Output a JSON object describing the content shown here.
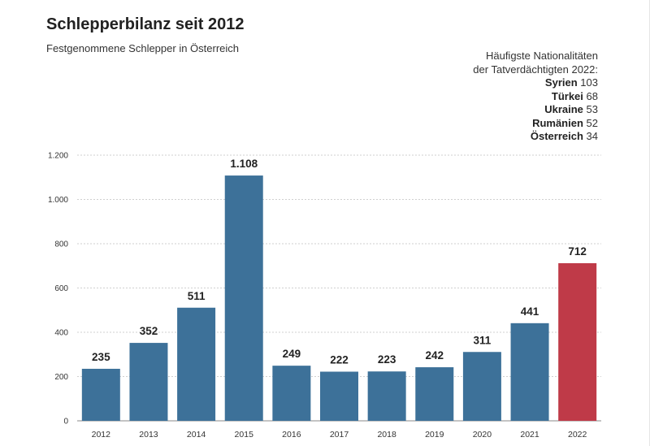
{
  "title": "Schlepperbilanz seit 2012",
  "subtitle": "Festgenommene Schlepper in Österreich",
  "nationalities": {
    "heading_line1": "Häufigste Nationalitäten",
    "heading_line2": "der Tatverdächtigten 2022:",
    "items": [
      {
        "country": "Syrien",
        "count": "103"
      },
      {
        "country": "Türkei",
        "count": "68"
      },
      {
        "country": "Ukraine",
        "count": "53"
      },
      {
        "country": "Rumänien",
        "count": "52"
      },
      {
        "country": "Österreich",
        "count": "34"
      }
    ]
  },
  "chart_data": {
    "type": "bar",
    "title": "Schlepperbilanz seit 2012",
    "subtitle": "Festgenommene Schlepper in Österreich",
    "xlabel": "",
    "ylabel": "",
    "categories": [
      "2012",
      "2013",
      "2014",
      "2015",
      "2016",
      "2017",
      "2018",
      "2019",
      "2020",
      "2021",
      "2022"
    ],
    "values": [
      235,
      352,
      511,
      1108,
      249,
      222,
      223,
      242,
      311,
      441,
      712
    ],
    "value_labels": [
      "235",
      "352",
      "511",
      "1.108",
      "249",
      "222",
      "223",
      "242",
      "311",
      "441",
      "712"
    ],
    "ylim": [
      0,
      1200
    ],
    "yticks": [
      0,
      200,
      400,
      600,
      800,
      1000,
      1200
    ],
    "ytick_labels": [
      "0",
      "200",
      "400",
      "600",
      "800",
      "1.000",
      "1.200"
    ],
    "grid": true,
    "colors": {
      "default": "#3d7199",
      "highlight": "#bf3a48"
    },
    "highlight_category": "2022"
  }
}
